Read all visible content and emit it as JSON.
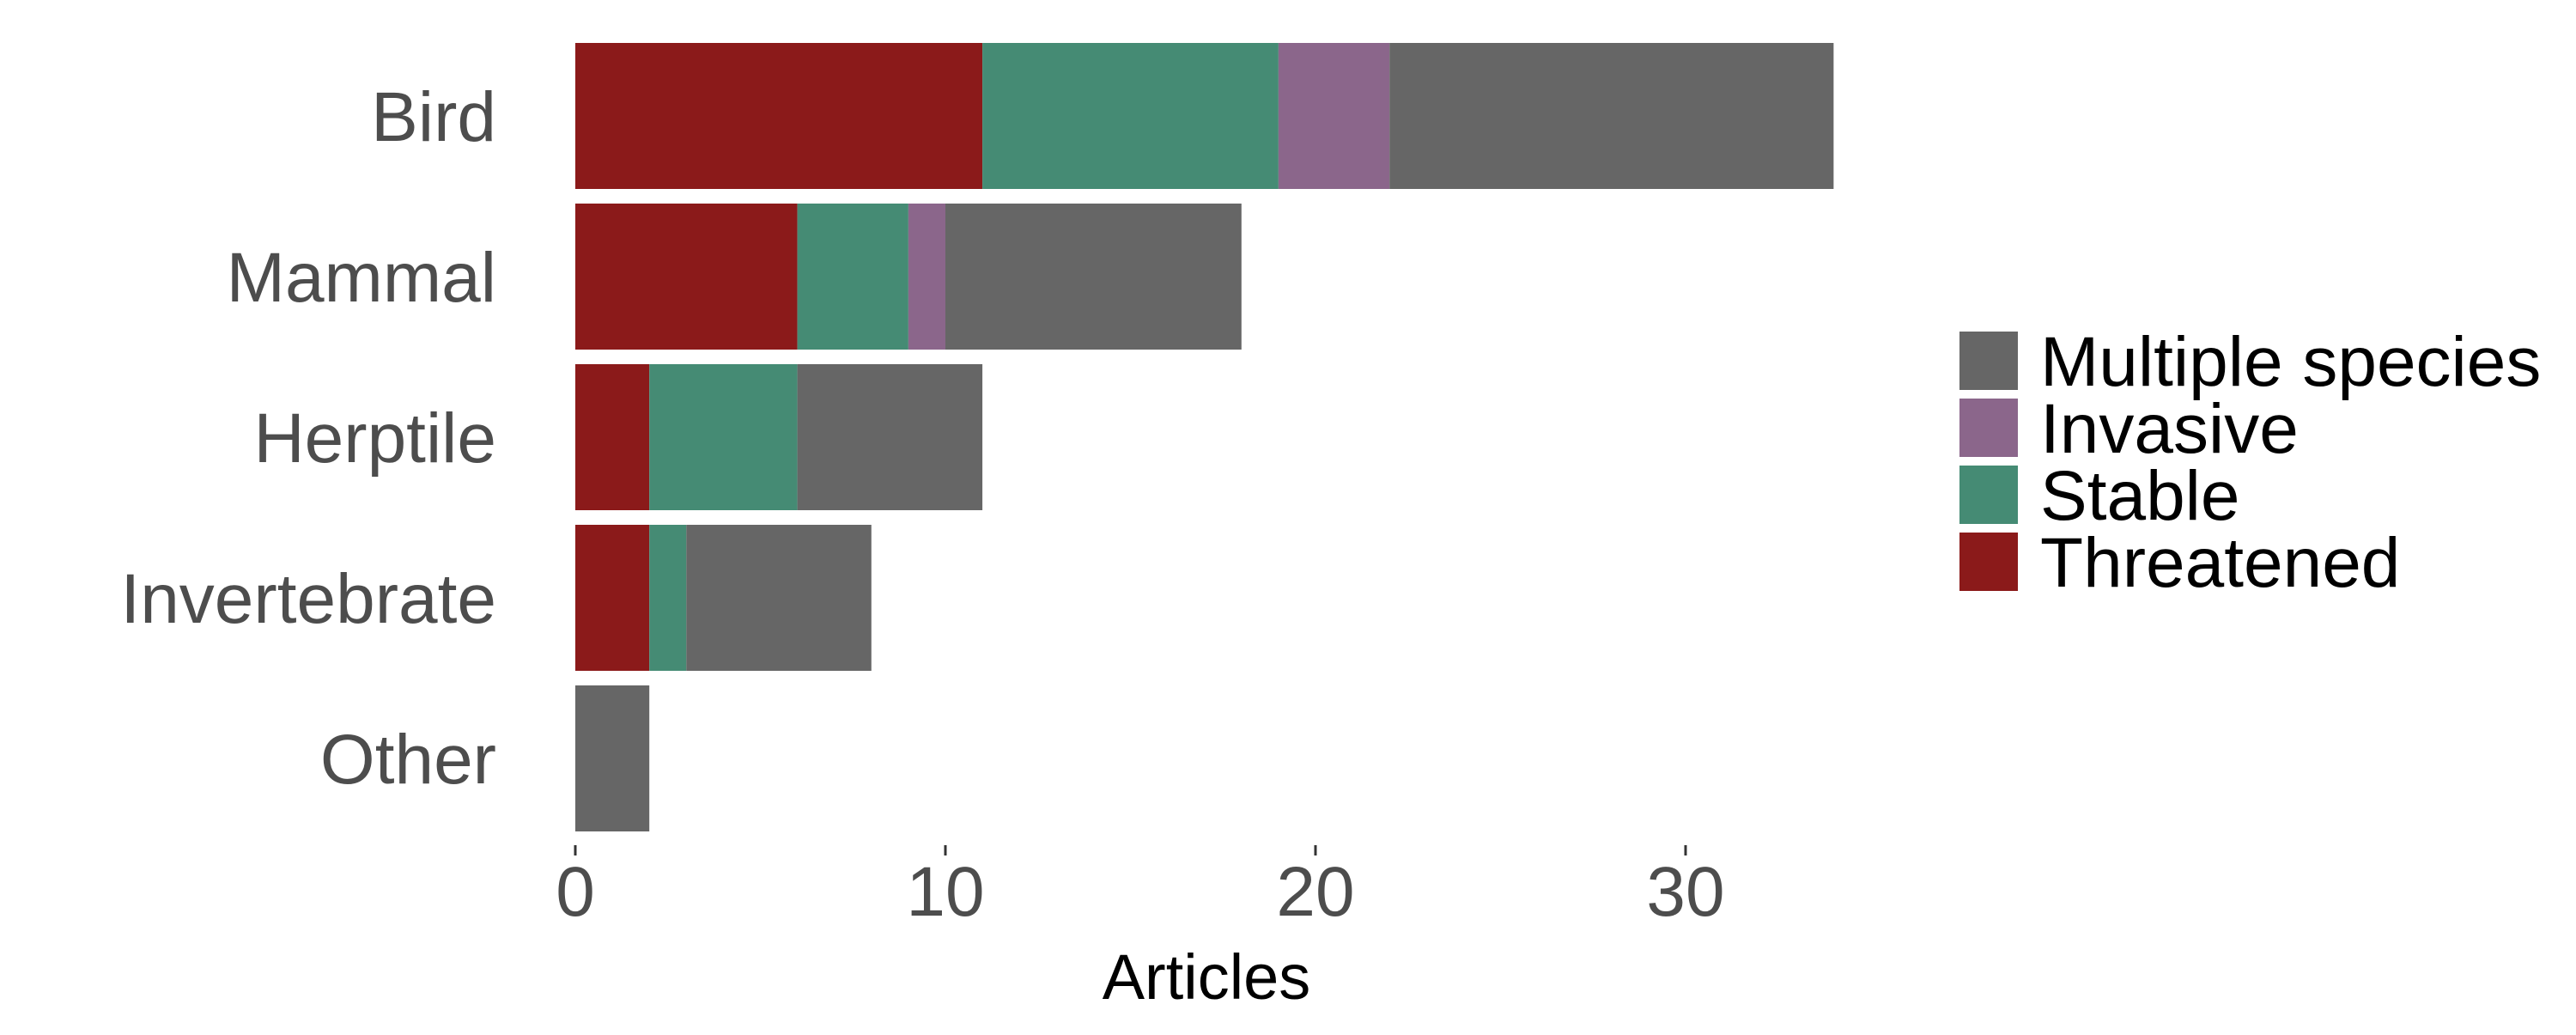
{
  "chart_data": {
    "type": "bar",
    "orientation": "horizontal",
    "stacked": true,
    "categories": [
      "Bird",
      "Mammal",
      "Herptile",
      "Invertebrate",
      "Other"
    ],
    "series": [
      {
        "name": "Threatened",
        "color": "#8b1a1a",
        "values": [
          11,
          6,
          2,
          2,
          0
        ]
      },
      {
        "name": "Stable",
        "color": "#458b74",
        "values": [
          8,
          3,
          4,
          1,
          0
        ]
      },
      {
        "name": "Invasive",
        "color": "#8b668b",
        "values": [
          3,
          1,
          0,
          0,
          0
        ]
      },
      {
        "name": "Multiple species",
        "color": "#666666",
        "values": [
          12,
          8,
          5,
          5,
          2
        ]
      }
    ],
    "legend_order": [
      "Multiple species",
      "Invasive",
      "Stable",
      "Threatened"
    ],
    "xlabel": "Articles",
    "ylabel": "",
    "title": "",
    "xlim": [
      0,
      34
    ],
    "x_ticks": [
      0,
      10,
      20,
      30
    ],
    "grid": false,
    "legend_position": "right"
  }
}
